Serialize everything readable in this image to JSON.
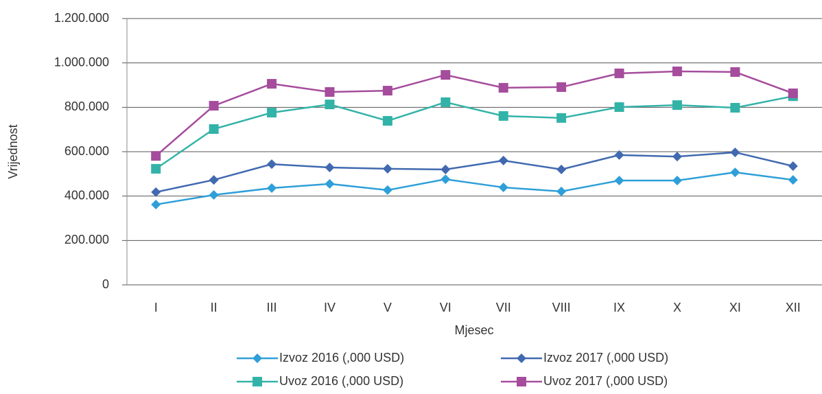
{
  "chart_data": {
    "type": "line",
    "y_label": "Vrijednost",
    "x_label": "Mjesec",
    "categories": [
      "I",
      "II",
      "III",
      "IV",
      "V",
      "VI",
      "VII",
      "VIII",
      "IX",
      "X",
      "XI",
      "XII"
    ],
    "series": [
      {
        "name": "Izvoz 2016 (,000 USD)",
        "color": "#2e9fd8",
        "marker": "diamond",
        "values": [
          362000,
          405000,
          436000,
          455000,
          427000,
          476000,
          439000,
          421000,
          470000,
          470000,
          507000,
          473000
        ]
      },
      {
        "name": "Izvoz 2017 (,000 USD)",
        "color": "#4169b0",
        "marker": "diamond",
        "values": [
          418000,
          473000,
          544000,
          529000,
          523000,
          520000,
          560000,
          520000,
          585000,
          578000,
          597000,
          535000
        ]
      },
      {
        "name": "Uvoz 2016 (,000 USD)",
        "color": "#33b3a8",
        "marker": "square",
        "values": [
          523000,
          702000,
          776000,
          813000,
          739000,
          823000,
          761000,
          752000,
          801000,
          810000,
          798000,
          850000
        ]
      },
      {
        "name": "Uvoz 2017 (,000 USD)",
        "color": "#a54c9c",
        "marker": "square",
        "values": [
          581000,
          807000,
          906000,
          869000,
          875000,
          946000,
          888000,
          891000,
          953000,
          962000,
          959000,
          863000
        ]
      }
    ],
    "ylim": [
      0,
      1200000
    ],
    "yticks": [
      0,
      {
        "value": 200000,
        "label": "200.000"
      },
      {
        "value": 400000,
        "label": "400.000"
      },
      {
        "value": 600000,
        "label": "600.000"
      },
      {
        "value": 800000,
        "label": "800.000"
      },
      {
        "value": 1000000,
        "label": "1.000.000"
      },
      {
        "value": 1200000,
        "label": "1.200.000"
      }
    ],
    "grid": true,
    "legend": "bottom"
  }
}
